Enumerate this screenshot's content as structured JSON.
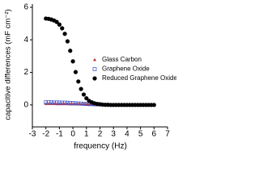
{
  "chart_data": {
    "type": "scatter",
    "xlabel": "frequency (Hz)",
    "ylabel": "capacitive differences (mF cm⁻²)",
    "xlim": [
      -3,
      7
    ],
    "xticks": [
      -3,
      -2,
      -1,
      0,
      1,
      2,
      3,
      4,
      5,
      6,
      7
    ],
    "ylim": [
      -1.35,
      6.2
    ],
    "yticks": [
      0,
      2,
      4,
      6
    ],
    "legend": "right",
    "series": [
      {
        "name": "Glass Carbon",
        "color": "#b5303a",
        "marker": "triangle",
        "x": [
          -2,
          -1.8,
          -1.6,
          -1.4,
          -1.2,
          -1,
          -0.8,
          -0.6,
          -0.4,
          -0.2,
          0,
          0.2,
          0.4,
          0.6,
          0.8,
          1,
          1.2,
          1.4,
          1.6,
          1.8,
          2
        ],
        "values": [
          0.07,
          0.07,
          0.07,
          0.07,
          0.06,
          0.06,
          0.06,
          0.06,
          0.06,
          0.05,
          0.05,
          0.05,
          0.05,
          0.04,
          0.04,
          0.04,
          0.03,
          0.03,
          0.03,
          0.03,
          0.03
        ]
      },
      {
        "name": "Graphene Oxide",
        "color": "#4a5fd0",
        "marker": "square-open",
        "x": [
          -2,
          -1.8,
          -1.6,
          -1.4,
          -1.2,
          -1,
          -0.8,
          -0.6,
          -0.4,
          -0.2,
          0,
          0.2,
          0.4,
          0.6,
          0.8,
          1,
          1.2,
          1.4,
          1.6,
          1.8,
          2
        ],
        "values": [
          0.16,
          0.16,
          0.16,
          0.15,
          0.15,
          0.15,
          0.14,
          0.14,
          0.13,
          0.12,
          0.11,
          0.1,
          0.09,
          0.08,
          0.07,
          0.06,
          0.05,
          0.05,
          0.04,
          0.04,
          0.04
        ]
      },
      {
        "name": "Reduced Graphene Oxide",
        "color": "#000000",
        "marker": "circle",
        "x": [
          -2,
          -1.8,
          -1.6,
          -1.4,
          -1.2,
          -1,
          -0.8,
          -0.6,
          -0.4,
          -0.2,
          0,
          0.2,
          0.4,
          0.6,
          0.8,
          1,
          1.2,
          1.4,
          1.6,
          1.8,
          2,
          2.2,
          2.4,
          2.6,
          2.8,
          3,
          3.2,
          3.4,
          3.6,
          3.8,
          4,
          4.2,
          4.4,
          4.6,
          4.8,
          5,
          5.2,
          5.4,
          5.6,
          5.8,
          6
        ],
        "values": [
          5.31,
          5.29,
          5.25,
          5.19,
          5.1,
          4.94,
          4.71,
          4.37,
          3.91,
          3.33,
          2.68,
          2.02,
          1.44,
          0.98,
          0.64,
          0.41,
          0.25,
          0.16,
          0.1,
          0.06,
          0.04,
          0.02,
          0.01,
          0.01,
          0,
          0,
          0,
          0,
          0,
          0,
          0,
          0,
          0,
          0,
          0,
          0,
          0,
          0,
          0,
          0,
          0
        ]
      }
    ]
  }
}
